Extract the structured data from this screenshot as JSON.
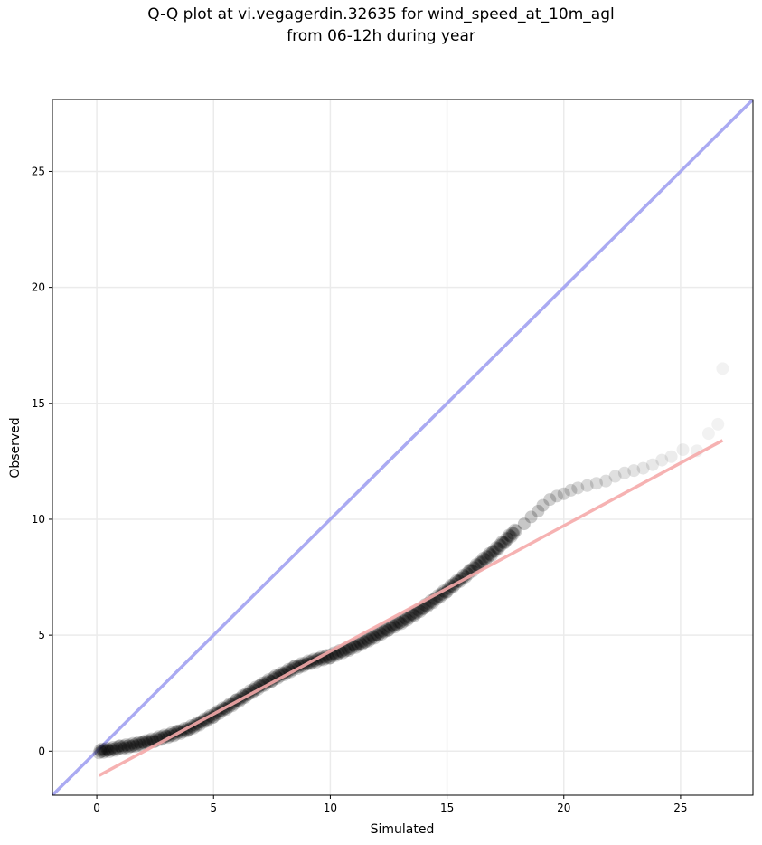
{
  "title_line1": "Q-Q plot at vi.vegagerdin.32635 for wind_speed_at_10m_agl",
  "title_line2": "from 06-12h during year",
  "chart_data": {
    "type": "scatter",
    "title": "Q-Q plot at vi.vegagerdin.32635 for wind_speed_at_10m_agl from 06-12h during year",
    "xlabel": "Simulated",
    "ylabel": "Observed",
    "xlim": [
      -1.9,
      28.1
    ],
    "ylim": [
      -1.9,
      28.1
    ],
    "xticks": [
      0,
      5,
      10,
      15,
      20,
      25
    ],
    "yticks": [
      0,
      5,
      10,
      15,
      20,
      25
    ],
    "grid": true,
    "reference_line": {
      "color": "#aaaaf2",
      "x": [
        -1.9,
        28.1
      ],
      "y": [
        -1.9,
        28.1
      ]
    },
    "fit_line": {
      "color": "#f5aaaa",
      "x": [
        0.1,
        26.8
      ],
      "y": [
        -1.05,
        13.4
      ]
    },
    "dense_curve": {
      "x": [
        0.1,
        0.5,
        1.0,
        1.5,
        2.0,
        2.5,
        3.0,
        3.5,
        4.0,
        4.5,
        5.0,
        5.5,
        6.0,
        6.5,
        7.0,
        7.5,
        8.0,
        8.5,
        9.0,
        9.5,
        10.0,
        10.5,
        11.0,
        11.5,
        12.0,
        12.5,
        13.0,
        13.5,
        14.0,
        14.5,
        15.0,
        15.5,
        16.0,
        16.5,
        17.0,
        17.5,
        18.0
      ],
      "y": [
        0.0,
        0.05,
        0.15,
        0.25,
        0.35,
        0.5,
        0.65,
        0.8,
        1.0,
        1.25,
        1.55,
        1.85,
        2.15,
        2.5,
        2.8,
        3.1,
        3.35,
        3.6,
        3.8,
        3.95,
        4.1,
        4.3,
        4.5,
        4.75,
        5.0,
        5.3,
        5.55,
        5.85,
        6.2,
        6.55,
        6.95,
        7.35,
        7.75,
        8.2,
        8.6,
        9.1,
        9.55
      ]
    },
    "tail_points": {
      "x": [
        18.3,
        18.6,
        18.9,
        19.1,
        19.4,
        19.7,
        20.0,
        20.3,
        20.6,
        21.0,
        21.4,
        21.8,
        22.2,
        22.6,
        23.0,
        23.4,
        23.8,
        24.2,
        24.6,
        25.1,
        25.7,
        26.2,
        26.6,
        26.8
      ],
      "y": [
        9.8,
        10.1,
        10.35,
        10.6,
        10.85,
        11.0,
        11.1,
        11.25,
        11.35,
        11.45,
        11.55,
        11.65,
        11.85,
        12.0,
        12.1,
        12.2,
        12.35,
        12.55,
        12.7,
        13.0,
        12.95,
        13.7,
        14.1,
        16.5
      ]
    }
  }
}
